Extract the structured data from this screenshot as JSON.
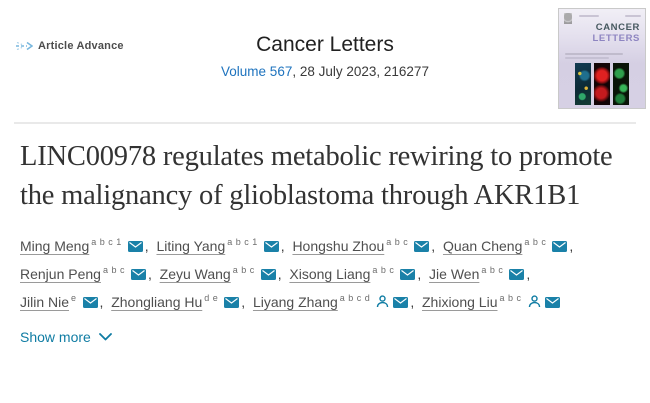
{
  "header": {
    "article_advance_label": "Article Advance",
    "journal_title": "Cancer Letters",
    "volume_link": "Volume 567",
    "issue_info": ", 28 July 2023, 216277"
  },
  "cover": {
    "title_word1": "CANCER",
    "title_word2": "LETTERS"
  },
  "article": {
    "title": "LINC00978 regulates metabolic rewiring to promote the malignancy of glioblastoma through AKR1B1"
  },
  "authors": [
    {
      "name": "Ming Meng",
      "sup": "a b c 1",
      "email": true,
      "profile": false,
      "break_after": false
    },
    {
      "name": "Liting Yang",
      "sup": "a b c 1",
      "email": true,
      "profile": false,
      "break_after": false
    },
    {
      "name": "Hongshu Zhou",
      "sup": "a b c",
      "email": true,
      "profile": false,
      "break_after": false
    },
    {
      "name": "Quan Cheng",
      "sup": "a b c",
      "email": true,
      "profile": false,
      "break_after": true
    },
    {
      "name": "Renjun Peng",
      "sup": "a b c",
      "email": true,
      "profile": false,
      "break_after": false
    },
    {
      "name": "Zeyu Wang",
      "sup": "a b c",
      "email": true,
      "profile": false,
      "break_after": false
    },
    {
      "name": "Xisong Liang",
      "sup": "a b c",
      "email": true,
      "profile": false,
      "break_after": false
    },
    {
      "name": "Jie Wen",
      "sup": "a b c",
      "email": true,
      "profile": false,
      "break_after": true
    },
    {
      "name": "Jilin Nie",
      "sup": "e",
      "email": true,
      "profile": false,
      "break_after": false
    },
    {
      "name": "Zhongliang Hu",
      "sup": "d e",
      "email": true,
      "profile": false,
      "break_after": false
    },
    {
      "name": "Liyang Zhang",
      "sup": "a b c d",
      "email": true,
      "profile": true,
      "break_after": false
    },
    {
      "name": "Zhixiong Liu",
      "sup": "a b c",
      "email": true,
      "profile": true,
      "break_after": false
    }
  ],
  "show_more": {
    "label": "Show more"
  },
  "colors": {
    "link_blue": "#1e73be",
    "icon_teal": "#0f7ca3",
    "envelope_fill": "#1a81a8",
    "arrow_blue": "#79b7dd",
    "cover_word1": "#46585f",
    "cover_word2": "#8e85c1"
  }
}
